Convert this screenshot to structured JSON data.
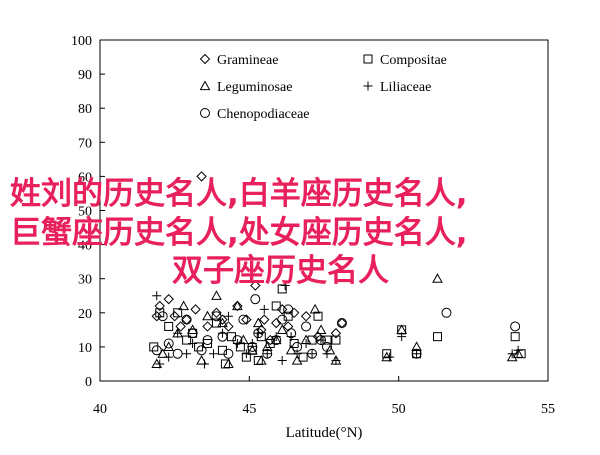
{
  "chart_data": {
    "type": "scatter",
    "title": "",
    "xlabel": "Latitude(°N)",
    "ylabel": "",
    "xlim": [
      40,
      55
    ],
    "ylim": [
      0,
      100
    ],
    "xticks": [
      40,
      45,
      50,
      55
    ],
    "yticks": [
      0,
      10,
      20,
      30,
      40,
      50,
      60,
      70,
      80,
      90,
      100
    ],
    "grid": false,
    "legend_position": "top",
    "series": [
      {
        "name": "Gramineae",
        "marker": "diamond",
        "points": [
          [
            41.9,
            19
          ],
          [
            42,
            22
          ],
          [
            42.3,
            24
          ],
          [
            42.5,
            19
          ],
          [
            42.7,
            16
          ],
          [
            42.9,
            18
          ],
          [
            43.2,
            21
          ],
          [
            43.4,
            60
          ],
          [
            43.6,
            16
          ],
          [
            43.9,
            20
          ],
          [
            44.1,
            18
          ],
          [
            44.3,
            16
          ],
          [
            44.6,
            22
          ],
          [
            44.9,
            18
          ],
          [
            45.2,
            28
          ],
          [
            45.5,
            18
          ],
          [
            45.7,
            12
          ],
          [
            45.9,
            17
          ],
          [
            46.1,
            21
          ],
          [
            46.3,
            16
          ],
          [
            46.5,
            20
          ],
          [
            46.9,
            19
          ],
          [
            47.3,
            13
          ],
          [
            47.9,
            14
          ],
          [
            48.1,
            17
          ],
          [
            45.4,
            15
          ]
        ]
      },
      {
        "name": "Compositae",
        "marker": "square",
        "points": [
          [
            41.8,
            10
          ],
          [
            42,
            20
          ],
          [
            42.3,
            16
          ],
          [
            42.6,
            20
          ],
          [
            42.9,
            12
          ],
          [
            43.1,
            14
          ],
          [
            43.3,
            10
          ],
          [
            43.6,
            11
          ],
          [
            43.9,
            17
          ],
          [
            44.1,
            9
          ],
          [
            44.4,
            13
          ],
          [
            44.7,
            10
          ],
          [
            44.9,
            7
          ],
          [
            45.1,
            9
          ],
          [
            45.4,
            13
          ],
          [
            45.7,
            11
          ],
          [
            45.9,
            22
          ],
          [
            46.1,
            27
          ],
          [
            46.3,
            19
          ],
          [
            46.5,
            11
          ],
          [
            46.8,
            7
          ],
          [
            47.1,
            12
          ],
          [
            47.3,
            19
          ],
          [
            47.6,
            12
          ],
          [
            47.9,
            12
          ],
          [
            49.6,
            8
          ],
          [
            50.1,
            15
          ],
          [
            50.6,
            8
          ],
          [
            51.3,
            13
          ],
          [
            53.9,
            13
          ],
          [
            54.1,
            8
          ],
          [
            44.2,
            5
          ],
          [
            45.3,
            6
          ]
        ]
      },
      {
        "name": "Leguminosae",
        "marker": "triangle",
        "points": [
          [
            41.9,
            5
          ],
          [
            42.1,
            8
          ],
          [
            42.3,
            10
          ],
          [
            42.6,
            14
          ],
          [
            42.8,
            22
          ],
          [
            43.1,
            15
          ],
          [
            43.4,
            6
          ],
          [
            43.6,
            19
          ],
          [
            43.9,
            25
          ],
          [
            44.1,
            17
          ],
          [
            44.3,
            5
          ],
          [
            44.6,
            22
          ],
          [
            44.8,
            12
          ],
          [
            45.1,
            9
          ],
          [
            45.3,
            17
          ],
          [
            45.6,
            10
          ],
          [
            45.9,
            12
          ],
          [
            46.1,
            15
          ],
          [
            46.4,
            9
          ],
          [
            46.6,
            6
          ],
          [
            46.9,
            12
          ],
          [
            47.2,
            21
          ],
          [
            47.4,
            15
          ],
          [
            47.7,
            9
          ],
          [
            47.9,
            6
          ],
          [
            49.6,
            7
          ],
          [
            50.1,
            15
          ],
          [
            50.6,
            10
          ],
          [
            51.3,
            30
          ],
          [
            53.8,
            7
          ],
          [
            54,
            8
          ],
          [
            45.4,
            6
          ]
        ]
      },
      {
        "name": "Liliaceae",
        "marker": "plus",
        "points": [
          [
            41.9,
            25
          ],
          [
            42,
            5
          ],
          [
            42.3,
            7
          ],
          [
            42.6,
            14
          ],
          [
            42.9,
            8
          ],
          [
            43.1,
            11
          ],
          [
            43.5,
            5
          ],
          [
            43.8,
            8
          ],
          [
            44.1,
            14
          ],
          [
            44.3,
            19
          ],
          [
            44.6,
            11
          ],
          [
            44.9,
            8
          ],
          [
            45.1,
            11
          ],
          [
            45.3,
            14
          ],
          [
            45.6,
            8
          ],
          [
            45.9,
            13
          ],
          [
            46.1,
            6
          ],
          [
            46.4,
            13
          ],
          [
            46.6,
            8
          ],
          [
            46.9,
            11
          ],
          [
            47.1,
            8
          ],
          [
            47.4,
            12
          ],
          [
            47.6,
            8
          ],
          [
            47.9,
            6
          ],
          [
            49.7,
            7
          ],
          [
            50.1,
            13
          ],
          [
            50.6,
            8
          ],
          [
            53.8,
            8
          ],
          [
            54,
            9
          ],
          [
            45.5,
            21
          ],
          [
            46.2,
            28
          ]
        ]
      },
      {
        "name": "Chenopodiaceae",
        "marker": "circle",
        "points": [
          [
            41.9,
            9
          ],
          [
            42.1,
            19
          ],
          [
            42.3,
            11
          ],
          [
            42.6,
            8
          ],
          [
            42.9,
            18
          ],
          [
            43.1,
            14
          ],
          [
            43.4,
            9
          ],
          [
            43.6,
            12
          ],
          [
            43.9,
            19
          ],
          [
            44.1,
            13
          ],
          [
            44.3,
            8
          ],
          [
            44.6,
            12
          ],
          [
            44.8,
            18
          ],
          [
            45.1,
            10
          ],
          [
            45.3,
            14
          ],
          [
            45.6,
            8
          ],
          [
            45.9,
            12
          ],
          [
            46.1,
            18
          ],
          [
            46.4,
            14
          ],
          [
            46.6,
            10
          ],
          [
            46.9,
            16
          ],
          [
            47.1,
            8
          ],
          [
            47.4,
            12
          ],
          [
            47.6,
            10
          ],
          [
            48.1,
            17
          ],
          [
            50.6,
            8
          ],
          [
            51.6,
            20
          ],
          [
            53.9,
            16
          ],
          [
            45.2,
            24
          ],
          [
            46.3,
            21
          ]
        ]
      }
    ]
  },
  "overlay": {
    "lines": [
      "姓刘的历史名人,白羊座历史名人,",
      "巨蟹座历史名人,处女座历史名人,",
      "双子座历史名人"
    ]
  }
}
